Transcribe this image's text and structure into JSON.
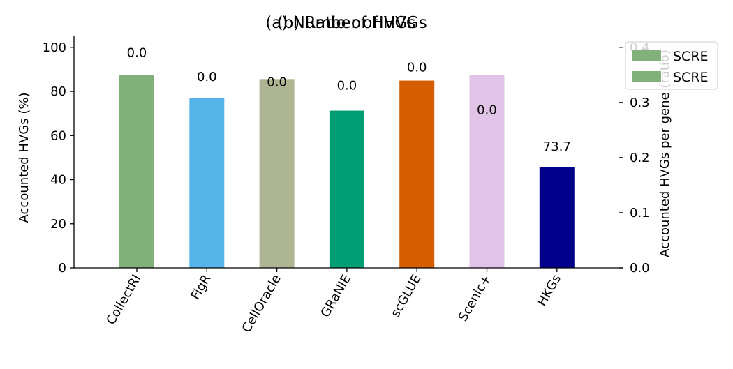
{
  "chart_data": {
    "type": "bar",
    "titles": [
      "(a) Number of HVGs",
      "(b) Ratio of HVGs"
    ],
    "categories": [
      "CollectRI",
      "FigR",
      "CellOracle",
      "GRaNIE",
      "scGLUE",
      "Scenic+",
      "HKGs"
    ],
    "colors": [
      "#82b07a",
      "#56b4e9",
      "#adb592",
      "#009e73",
      "#d55e00",
      "#e0c3e6",
      "#00008b"
    ],
    "values": [
      87.5,
      77.1,
      85.6,
      71.3,
      84.9,
      87.5,
      45.8
    ],
    "bar_labels": [
      "0.0",
      "0.0",
      "0.0",
      "0.0",
      "0.0",
      "0.0",
      "73.7"
    ],
    "ylabel_left": "Accounted HVGs (%)",
    "ylabel_right": "Accounted HVGs per gene (ratio)",
    "ylim_left": [
      0,
      105
    ],
    "yticks_left": [
      "0",
      "20",
      "40",
      "60",
      "80",
      "100"
    ],
    "ylim_right": [
      0,
      0.42
    ],
    "yticks_right": [
      "0.0",
      "0.1",
      "0.2",
      "0.3",
      "0.4"
    ],
    "grid": false,
    "legend": {
      "placement": "top-right",
      "entries": [
        {
          "name": "SCRE",
          "color": "#82b07a"
        },
        {
          "name": "SCRE",
          "color": "#82b07a"
        }
      ]
    }
  }
}
